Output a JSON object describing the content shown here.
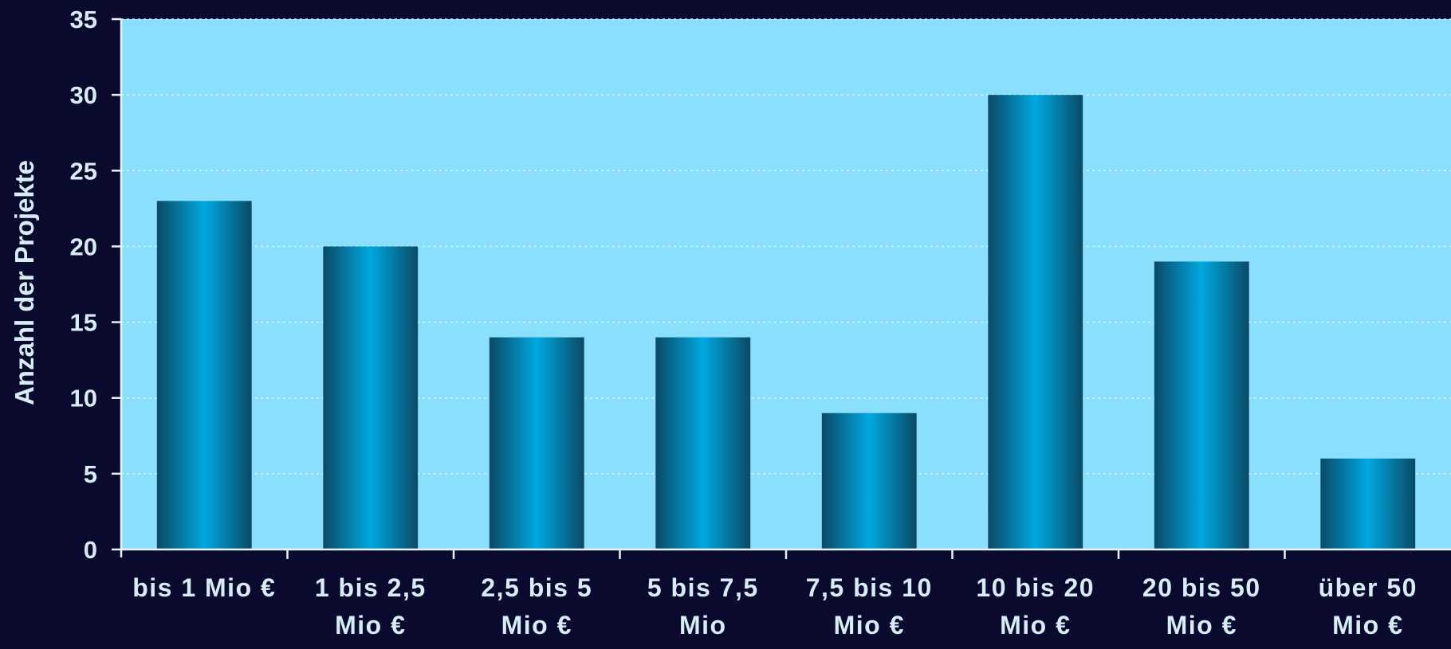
{
  "colors": {
    "page_background": "#0a0a2e",
    "plot_background": "#8ae0fc",
    "bar_center": "#00a8e0",
    "bar_edge": "#0a4a66",
    "text": "#d8ecf6",
    "axis": "#e8f4fa",
    "grid": "#e8f4fa"
  },
  "chart_data": {
    "type": "bar",
    "title": "",
    "xlabel": "",
    "ylabel": "Anzahl der Projekte",
    "ylim": [
      0,
      35
    ],
    "yticks": [
      0,
      5,
      10,
      15,
      20,
      25,
      30,
      35
    ],
    "y_grid": true,
    "grid_style": "dotted",
    "categories": [
      [
        "bis 1 Mio €"
      ],
      [
        "1 bis 2,5",
        "Mio €"
      ],
      [
        "2,5 bis 5",
        "Mio €"
      ],
      [
        "5 bis 7,5",
        "Mio"
      ],
      [
        "7,5 bis 10",
        "Mio €"
      ],
      [
        "10 bis 20",
        "Mio €"
      ],
      [
        "20 bis 50",
        "Mio €"
      ],
      [
        "über 50",
        "Mio €"
      ]
    ],
    "values": [
      23,
      20,
      14,
      14,
      9,
      30,
      19,
      6
    ]
  }
}
